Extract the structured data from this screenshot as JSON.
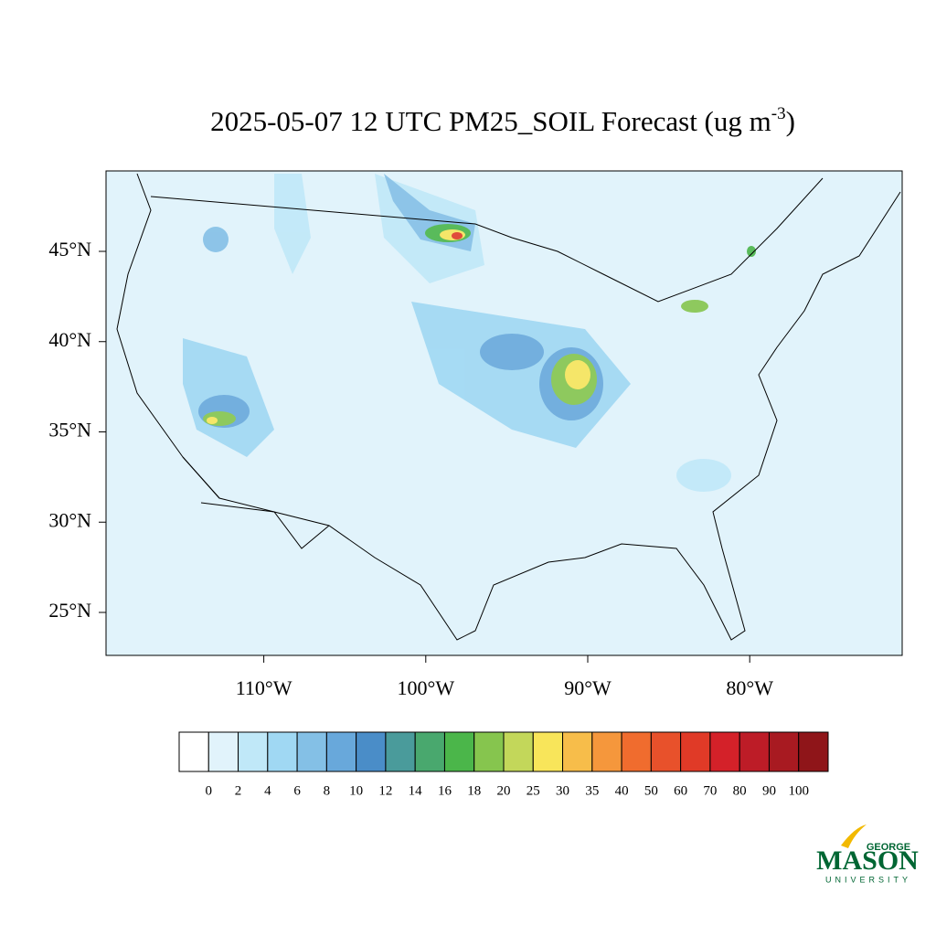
{
  "header": {
    "title": "2025-05-07 12 UTC PM25_SOIL Forecast (ug m",
    "title_superscript": "-3",
    "title_close": ")"
  },
  "map": {
    "lat_ticks": [
      {
        "value": 45,
        "label": "45°N"
      },
      {
        "value": 40,
        "label": "40°N"
      },
      {
        "value": 35,
        "label": "35°N"
      },
      {
        "value": 30,
        "label": "30°N"
      },
      {
        "value": 25,
        "label": "25°N"
      }
    ],
    "lon_ticks": [
      {
        "value": -110,
        "label": "110°W"
      },
      {
        "value": -100,
        "label": "100°W"
      },
      {
        "value": -90,
        "label": "90°W"
      },
      {
        "value": -80,
        "label": "80°W"
      }
    ]
  },
  "colorbar": {
    "levels": [
      0,
      2,
      4,
      6,
      8,
      10,
      12,
      14,
      16,
      18,
      20,
      25,
      30,
      35,
      40,
      50,
      60,
      70,
      80,
      90,
      100
    ],
    "colors": [
      "#ffffff",
      "#e1f3fb",
      "#c0e8f8",
      "#a0d8f3",
      "#84c0e6",
      "#68a8db",
      "#4a8dc8",
      "#4a9b9b",
      "#49a86e",
      "#4bb64a",
      "#86c54e",
      "#c3d75a",
      "#f8e55a",
      "#f7bd4a",
      "#f5973c",
      "#f06c2e",
      "#e8512b",
      "#e03a27",
      "#d42129",
      "#bd1c27",
      "#a81a21",
      "#8f1519"
    ]
  },
  "logo": {
    "top": "GEORGE",
    "main": "MASON",
    "bottom": "UNIVERSITY"
  }
}
